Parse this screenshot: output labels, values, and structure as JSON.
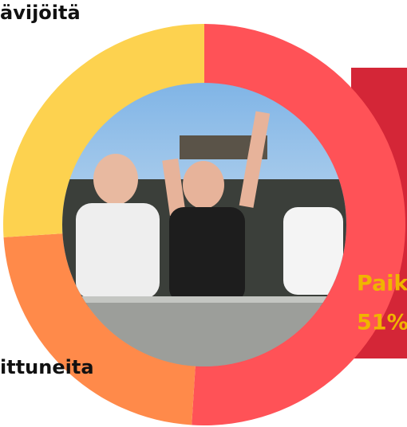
{
  "chart_data": {
    "type": "donut",
    "categories": [
      "Paik",
      "ittuneita",
      "ävijöitä"
    ],
    "values": [
      51,
      23,
      26
    ],
    "value_labels": [
      "51%",
      null,
      null
    ],
    "colors": [
      "#ff5257",
      "#ff8a4a",
      "#fdd24f"
    ]
  }
}
